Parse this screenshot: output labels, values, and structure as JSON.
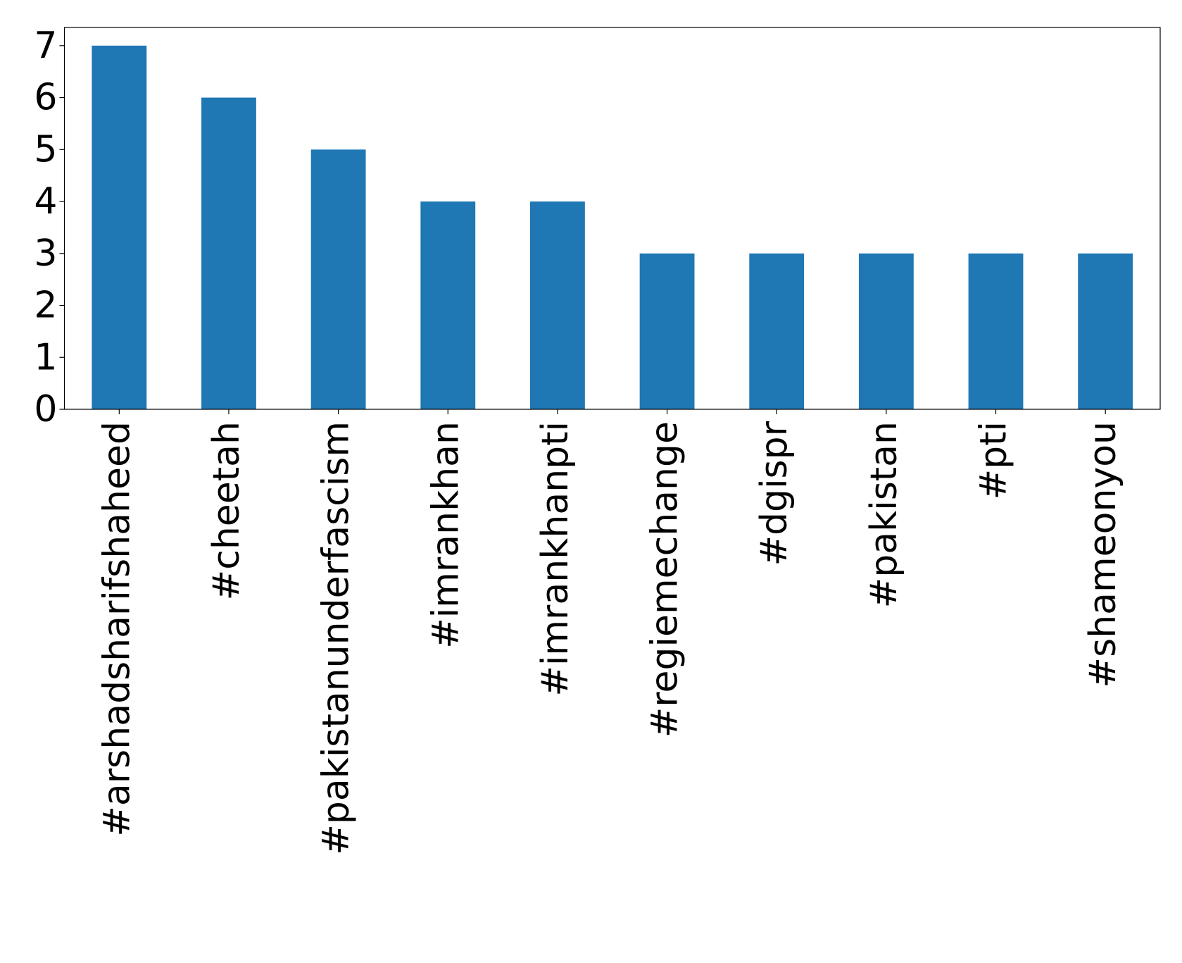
{
  "chart_data": {
    "type": "bar",
    "categories": [
      "#arshadsharifshaheed",
      "#cheetah",
      "#pakistanunderfascism",
      "#imrankhan",
      "#imrankhanpti",
      "#regiemechange",
      "#dgispr",
      "#pakistan",
      "#pti",
      "#shameonyou"
    ],
    "values": [
      7,
      6,
      5,
      4,
      4,
      3,
      3,
      3,
      3,
      3
    ],
    "color": "#1f77b4",
    "ylim": [
      0,
      7.35
    ],
    "yticks": [
      0,
      1,
      2,
      3,
      4,
      5,
      6,
      7
    ],
    "grid": false
  }
}
